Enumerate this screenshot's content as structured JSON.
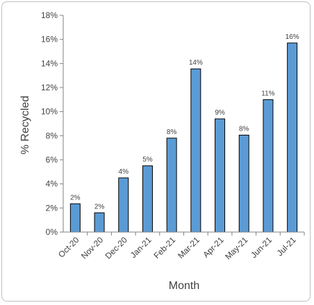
{
  "chart_data": {
    "type": "bar",
    "title": "",
    "xlabel": "Month",
    "ylabel": "% Recycled",
    "categories": [
      "Oct-20",
      "Nov-20",
      "Dec-20",
      "Jan-21",
      "Feb-21",
      "Mar-21",
      "Apr-21",
      "May-21",
      "Jun-21",
      "Jul-21"
    ],
    "values": [
      2.35,
      1.6,
      4.5,
      5.5,
      7.8,
      13.55,
      9.4,
      8.05,
      11.0,
      15.7
    ],
    "data_labels": [
      "2%",
      "2%",
      "4%",
      "5%",
      "8%",
      "14%",
      "9%",
      "8%",
      "11%",
      "16%"
    ],
    "ylim": [
      0,
      18
    ],
    "yticks": [
      0,
      2,
      4,
      6,
      8,
      10,
      12,
      14,
      16,
      18
    ],
    "ytick_labels": [
      "0%",
      "2%",
      "4%",
      "6%",
      "8%",
      "10%",
      "12%",
      "14%",
      "16%",
      "18%"
    ],
    "grid": false,
    "legend": "none",
    "colors": {
      "bar_fill": "#5b9bd5",
      "bar_stroke": "#000000",
      "axis": "#808080",
      "text": "#404040"
    }
  }
}
